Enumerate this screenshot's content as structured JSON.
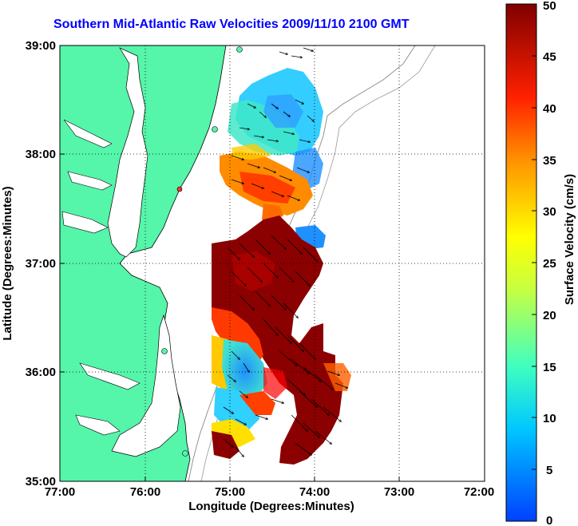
{
  "title": "Southern Mid-Atlantic Raw Velocities 2009/11/10 2100 GMT",
  "map": {
    "xlabel": "Longitude (Degrees:Minutes)",
    "ylabel": "Latitude (Degrees:Minutes)",
    "x_ticks": [
      "77:00",
      "76:00",
      "75:00",
      "74:00",
      "73:00",
      "72:00"
    ],
    "y_ticks": [
      "39:00",
      "38:00",
      "37:00",
      "36:00",
      "35:00"
    ],
    "land_color": "#55f5aa",
    "ocean_color": "#ffffff"
  },
  "colorbar": {
    "label": "Surface Velocity (cm/s)",
    "ticks": [
      "50",
      "45",
      "40",
      "35",
      "30",
      "25",
      "20",
      "15",
      "10",
      "5",
      "0"
    ],
    "min": 0,
    "max": 50
  }
}
